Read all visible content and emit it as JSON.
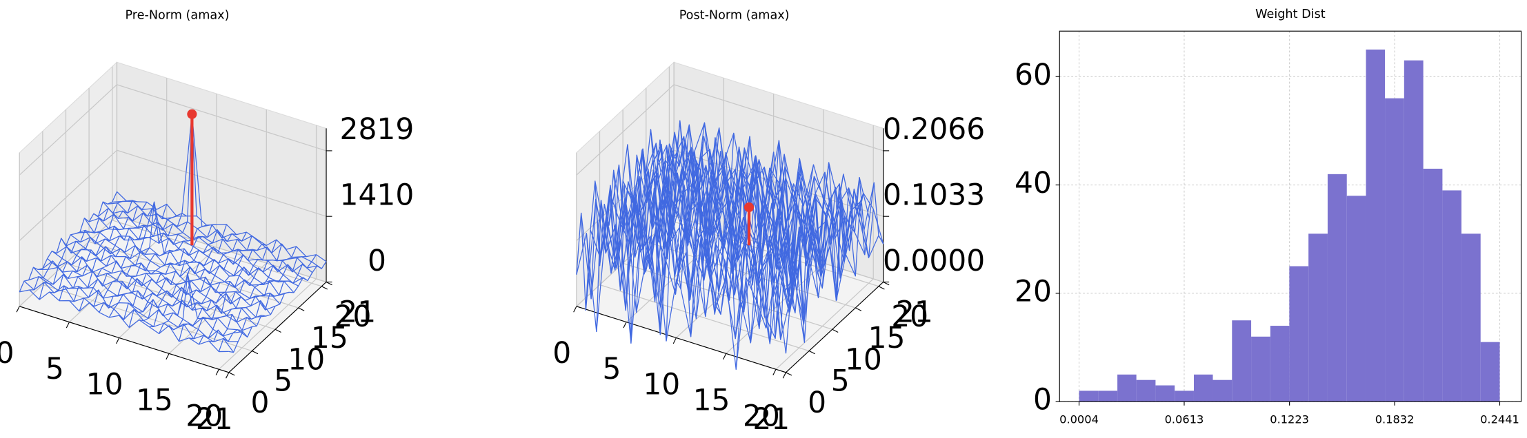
{
  "chart_data": [
    {
      "type": "surface3d",
      "title": "Pre-Norm (amax)",
      "color": "#4169e1",
      "marker_color": "#e8382f",
      "grid": true,
      "x": [
        0,
        1,
        2,
        3,
        4,
        5,
        6,
        7,
        8,
        9,
        10,
        11,
        12,
        13,
        14,
        15,
        16,
        17,
        18,
        19,
        20,
        21
      ],
      "y": [
        0,
        1,
        2,
        3,
        4,
        5,
        6,
        7,
        8,
        9,
        10,
        11,
        12,
        13,
        14,
        15,
        16,
        17,
        18,
        19,
        20,
        21
      ],
      "xlim": [
        0,
        21
      ],
      "ylim": [
        0,
        21
      ],
      "zlim": [
        0,
        3300
      ],
      "xticks": [
        0,
        5,
        10,
        15,
        20,
        21
      ],
      "yticks": [
        0,
        5,
        10,
        15,
        20,
        21
      ],
      "zticks": [
        0,
        1410,
        2819
      ],
      "z": [
        [
          310,
          420,
          280,
          510,
          390,
          460,
          300,
          550,
          410,
          370,
          480,
          290,
          520,
          440,
          360,
          600,
          330,
          470,
          400,
          540,
          380,
          450
        ],
        [
          450,
          330,
          560,
          400,
          620,
          350,
          490,
          380,
          530,
          460,
          300,
          580,
          410,
          350,
          490,
          420,
          610,
          360,
          500,
          430,
          570,
          340
        ],
        [
          380,
          520,
          440,
          350,
          470,
          580,
          410,
          640,
          320,
          500,
          560,
          430,
          370,
          620,
          450,
          380,
          520,
          470,
          340,
          590,
          410,
          480
        ],
        [
          560,
          400,
          330,
          610,
          380,
          450,
          530,
          370,
          480,
          590,
          410,
          350,
          680,
          400,
          530,
          460,
          390,
          640,
          450,
          370,
          500,
          600
        ],
        [
          420,
          490,
          600,
          430,
          540,
          370,
          620,
          460,
          390,
          520,
          640,
          470,
          410,
          560,
          380,
          1350,
          450,
          520,
          600,
          430,
          480,
          390
        ],
        [
          350,
          580,
          410,
          500,
          460,
          630,
          380,
          540,
          610,
          430,
          370,
          560,
          490,
          420,
          610,
          470,
          580,
          400,
          530,
          650,
          370,
          520
        ],
        [
          470,
          360,
          540,
          390,
          600,
          420,
          560,
          480,
          360,
          650,
          520,
          410,
          590,
          470,
          380,
          540,
          430,
          620,
          460,
          390,
          560,
          440
        ],
        [
          540,
          450,
          380,
          620,
          350,
          510,
          470,
          590,
          520,
          400,
          610,
          480,
          360,
          640,
          500,
          420,
          570,
          350,
          510,
          600,
          430,
          580
        ],
        [
          400,
          610,
          490,
          430,
          570,
          460,
          640,
          380,
          450,
          580,
          430,
          620,
          530,
          390,
          560,
          480,
          410,
          690,
          440,
          520,
          380,
          470
        ],
        [
          630,
          380,
          520,
          580,
          410,
          600,
          390,
          510,
          640,
          470,
          550,
          380,
          470,
          600,
          430,
          620,
          500,
          370,
          590,
          460,
          640,
          410
        ],
        [
          370,
          540,
          450,
          360,
          630,
          480,
          550,
          420,
          380,
          450,
          440,
          570,
          410,
          520,
          650,
          390,
          460,
          540,
          420,
          580,
          350,
          500
        ],
        [
          520,
          430,
          600,
          490,
          380,
          560,
          410,
          620,
          500,
          430,
          590,
          360,
          640,
          450,
          380,
          510,
          600,
          430,
          370,
          490,
          620,
          450
        ],
        [
          450,
          590,
          370,
          540,
          470,
          390,
          600,
          480,
          560,
          390,
          470,
          620,
          400,
          570,
          500,
          430,
          380,
          610,
          520,
          400,
          460,
          590
        ],
        [
          380,
          460,
          520,
          410,
          580,
          640,
          360,
          530,
          420,
          610,
          350,
          480,
          560,
          380,
          620,
          460,
          540,
          400,
          480,
          630,
          390,
          520
        ],
        [
          600,
          350,
          480,
          630,
          400,
          470,
          590,
          1420,
          370,
          500,
          620,
          430,
          390,
          590,
          450,
          380,
          630,
          470,
          390,
          540,
          600,
          420
        ],
        [
          430,
          570,
          410,
          460,
          560,
          380,
          500,
          440,
          620,
          460,
          380,
          560,
          480,
          420,
          580,
          520,
          360,
          590,
          450,
          420,
          510,
          470
        ],
        [
          510,
          420,
          630,
          390,
          470,
          600,
          430,
          570,
          390,
          530,
          480,
          410,
          600,
          510,
          370,
          640,
          470,
          410,
          620,
          480,
          370,
          560
        ],
        [
          360,
          600,
          450,
          540,
          380,
          490,
          640,
          410,
          520,
          440,
          600,
          500,
          380,
          460,
          600,
          430,
          520,
          560,
          390,
          610,
          450,
          400
        ],
        [
          580,
          400,
          520,
          370,
          610,
          430,
          380,
          580,
          460,
          370,
          510,
          440,
          590,
          400,
          480,
          570,
          410,
          480,
          530,
          360,
          590,
          480
        ],
        [
          440,
          530,
          380,
          600,
          450,
          560,
          510,
          430,
          600,
          520,
          400,
          630,
          450,
          560,
          390,
          460,
          600,
          370,
          470,
          570,
          420,
          530
        ],
        [
          390,
          470,
          560,
          430,
          520,
          370,
          460,
          620,
          2819,
          470,
          580,
          360,
          520,
          430,
          610,
          500,
          380,
          640,
          420,
          500,
          460,
          380
        ],
        [
          520,
          380,
          440,
          500,
          410,
          590,
          400,
          470,
          540,
          410,
          490,
          560,
          410,
          530,
          450,
          380,
          570,
          430,
          560,
          410,
          520,
          440
        ]
      ]
    },
    {
      "type": "surface3d",
      "title": "Post-Norm (amax)",
      "color": "#4169e1",
      "marker_color": "#e8382f",
      "grid": true,
      "x": [
        0,
        1,
        2,
        3,
        4,
        5,
        6,
        7,
        8,
        9,
        10,
        11,
        12,
        13,
        14,
        15,
        16,
        17,
        18,
        19,
        20,
        21
      ],
      "y": [
        0,
        1,
        2,
        3,
        4,
        5,
        6,
        7,
        8,
        9,
        10,
        11,
        12,
        13,
        14,
        15,
        16,
        17,
        18,
        19,
        20,
        21
      ],
      "xlim": [
        0,
        21
      ],
      "ylim": [
        0,
        21
      ],
      "zlim": [
        0,
        0.2418
      ],
      "xticks": [
        0,
        5,
        10,
        15,
        20,
        21
      ],
      "yticks": [
        0,
        5,
        10,
        15,
        20,
        21
      ],
      "zticks": [
        {
          "value": 0,
          "label": "0.0000"
        },
        0.1033,
        0.2066
      ],
      "z": [
        [
          0.05,
          0.12,
          -0.03,
          0.15,
          0.08,
          0.18,
          0.02,
          0.11,
          0.16,
          -0.01,
          0.09,
          0.14,
          0.04,
          0.17,
          0.07,
          0.12,
          -0.02,
          0.13,
          0.1,
          0.06,
          0.15,
          0.03
        ],
        [
          0.14,
          0.01,
          0.17,
          0.06,
          0.12,
          -0.04,
          0.15,
          0.09,
          0.03,
          0.18,
          0.07,
          0.0,
          0.16,
          0.1,
          0.05,
          0.19,
          0.08,
          0.02,
          0.14,
          0.17,
          0.04,
          0.11
        ],
        [
          -0.02,
          0.16,
          0.08,
          0.13,
          0.0,
          0.19,
          0.07,
          0.14,
          0.1,
          0.05,
          0.17,
          0.11,
          0.03,
          0.15,
          0.09,
          0.01,
          0.16,
          0.12,
          0.06,
          0.03,
          0.18,
          0.08
        ],
        [
          0.1,
          0.06,
          0.18,
          0.02,
          0.15,
          0.09,
          0.12,
          -0.03,
          0.17,
          0.11,
          0.04,
          0.16,
          0.08,
          0.13,
          0.19,
          0.05,
          0.1,
          0.17,
          0.01,
          0.14,
          0.07,
          0.16
        ],
        [
          0.17,
          0.09,
          0.04,
          0.16,
          0.07,
          0.13,
          0.01,
          0.18,
          0.06,
          0.14,
          0.1,
          0.19,
          0.02,
          0.11,
          0.06,
          0.15,
          0.13,
          0.04,
          0.18,
          0.09,
          0.12,
          0.02
        ],
        [
          0.03,
          0.15,
          0.11,
          0.08,
          0.19,
          0.05,
          0.16,
          0.1,
          0.13,
          0.02,
          0.18,
          0.07,
          0.15,
          0.04,
          0.17,
          0.09,
          0.01,
          0.16,
          0.11,
          0.05,
          0.19,
          0.13
        ],
        [
          0.12,
          0.04,
          0.16,
          0.14,
          0.03,
          0.17,
          0.08,
          0.12,
          0.19,
          0.09,
          0.05,
          0.14,
          0.11,
          0.18,
          0.02,
          0.13,
          0.17,
          0.08,
          0.15,
          0.1,
          0.03,
          0.16
        ],
        [
          0.08,
          0.18,
          0.02,
          0.11,
          0.15,
          0.1,
          0.19,
          0.04,
          0.14,
          0.16,
          0.12,
          0.03,
          0.17,
          0.09,
          0.14,
          0.06,
          0.11,
          0.19,
          0.05,
          0.16,
          0.13,
          0.07
        ],
        [
          0.16,
          0.07,
          0.13,
          0.05,
          0.18,
          0.02,
          0.13,
          0.16,
          0.08,
          0.11,
          0.19,
          0.1,
          0.06,
          0.15,
          0.12,
          0.18,
          0.04,
          0.1,
          0.14,
          0.02,
          0.17,
          0.12
        ],
        [
          0.01,
          0.14,
          0.09,
          0.17,
          0.06,
          0.15,
          0.11,
          0.07,
          0.17,
          0.04,
          0.13,
          0.16,
          0.09,
          0.12,
          0.05,
          0.1,
          0.16,
          0.13,
          0.07,
          0.19,
          0.09,
          0.15
        ],
        [
          0.13,
          0.1,
          0.19,
          0.07,
          0.12,
          0.08,
          0.18,
          0.14,
          0.03,
          0.2066,
          0.08,
          0.12,
          0.18,
          0.03,
          0.17,
          0.14,
          0.08,
          0.02,
          0.18,
          0.11,
          0.06,
          0.18
        ],
        [
          0.18,
          0.03,
          0.12,
          0.15,
          0.02,
          0.16,
          0.05,
          0.11,
          0.15,
          0.09,
          0.16,
          0.05,
          0.14,
          0.19,
          0.1,
          0.07,
          0.12,
          0.17,
          0.09,
          0.14,
          0.16,
          0.04
        ],
        [
          0.06,
          0.17,
          0.05,
          0.1,
          0.17,
          0.12,
          0.14,
          0.19,
          0.07,
          0.13,
          0.02,
          0.17,
          0.1,
          0.06,
          0.15,
          0.18,
          0.03,
          0.14,
          0.11,
          0.07,
          0.12,
          0.19
        ],
        [
          0.15,
          0.08,
          0.14,
          0.18,
          0.09,
          0.04,
          0.17,
          0.02,
          0.12,
          0.16,
          0.11,
          0.08,
          0.19,
          0.13,
          0.04,
          0.12,
          0.16,
          0.06,
          0.17,
          0.15,
          0.02,
          0.1
        ],
        [
          0.02,
          0.13,
          0.17,
          0.03,
          0.14,
          0.18,
          0.09,
          0.15,
          0.1,
          0.06,
          0.18,
          0.14,
          0.03,
          0.16,
          0.11,
          0.02,
          0.18,
          0.12,
          0.04,
          0.1,
          0.17,
          0.13
        ],
        [
          0.11,
          0.16,
          0.07,
          0.12,
          0.05,
          0.1,
          0.15,
          0.08,
          0.18,
          0.12,
          0.04,
          0.19,
          0.12,
          0.08,
          0.17,
          0.13,
          0.07,
          0.16,
          0.13,
          0.18,
          0.08,
          0.05
        ],
        [
          0.17,
          0.05,
          0.15,
          0.09,
          0.16,
          0.13,
          0.03,
          0.17,
          0.05,
          0.15,
          0.13,
          0.07,
          0.16,
          0.11,
          0.02,
          0.19,
          0.1,
          0.05,
          0.15,
          0.03,
          0.14,
          0.16
        ],
        [
          0.07,
          0.12,
          0.1,
          0.16,
          0.08,
          0.02,
          0.18,
          0.11,
          0.14,
          0.08,
          0.17,
          0.1,
          0.05,
          0.17,
          0.13,
          0.06,
          0.14,
          0.18,
          0.08,
          0.12,
          0.1,
          0.07
        ],
        [
          0.14,
          0.02,
          0.18,
          0.04,
          0.13,
          0.15,
          0.07,
          0.13,
          0.09,
          0.19,
          0.03,
          0.15,
          0.13,
          0.04,
          0.18,
          0.11,
          0.02,
          0.13,
          0.16,
          0.06,
          0.18,
          0.12
        ],
        [
          0.04,
          0.15,
          0.08,
          0.13,
          0.18,
          0.09,
          0.12,
          0.05,
          0.16,
          0.11,
          0.14,
          0.08,
          0.17,
          0.1,
          0.07,
          0.15,
          0.12,
          0.09,
          0.03,
          0.15,
          0.09,
          0.17
        ],
        [
          0.12,
          0.09,
          0.16,
          0.06,
          0.1,
          0.17,
          0.04,
          0.15,
          0.06,
          0.14,
          0.09,
          0.18,
          0.06,
          0.14,
          0.11,
          0.03,
          0.17,
          0.11,
          0.14,
          0.1,
          0.04,
          0.08
        ],
        [
          0.09,
          0.13,
          0.03,
          0.14,
          0.07,
          0.11,
          0.16,
          0.08,
          0.12,
          0.05,
          0.15,
          0.02,
          0.11,
          0.08,
          0.15,
          0.1,
          0.06,
          0.15,
          0.08,
          0.13,
          0.11,
          0.06
        ]
      ]
    },
    {
      "type": "histogram",
      "title": "Weight Dist",
      "color": "#7b72cf",
      "grid": true,
      "bins": [
        0.0004,
        0.0115,
        0.0226,
        0.0336,
        0.0447,
        0.0558,
        0.0669,
        0.0779,
        0.089,
        0.1001,
        0.1112,
        0.1222,
        0.1333,
        0.1444,
        0.1555,
        0.1666,
        0.1776,
        0.1887,
        0.1998,
        0.2109,
        0.2219,
        0.233,
        0.2441
      ],
      "values": [
        2,
        2,
        5,
        4,
        3,
        2,
        5,
        4,
        15,
        12,
        14,
        25,
        31,
        42,
        38,
        65,
        56,
        63,
        43,
        39,
        31,
        11
      ],
      "xlim": [
        -0.0109,
        0.2565
      ],
      "ylim": [
        0,
        68.4
      ],
      "xticks": [
        0.0004,
        0.0613,
        0.1223,
        0.1832,
        0.2441
      ],
      "yticks": [
        0,
        20,
        40,
        60
      ]
    }
  ]
}
